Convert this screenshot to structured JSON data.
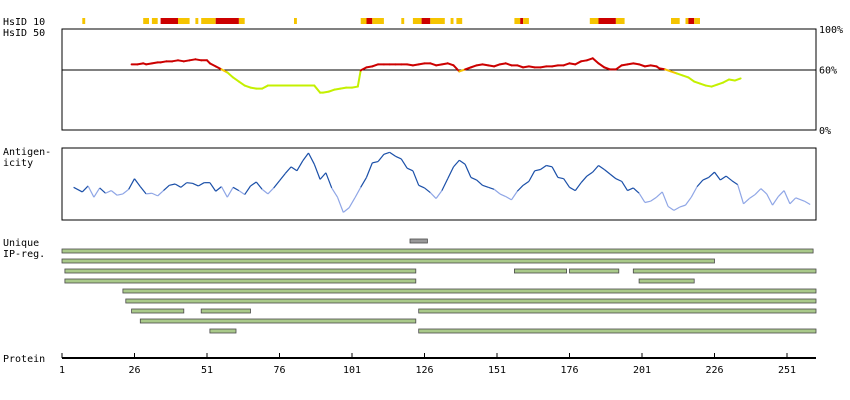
{
  "labels": {
    "hsid10": "HsID 10",
    "hsid50": "HsID 50",
    "antigen_1": "Antigen-",
    "antigen_2": "icity",
    "unique_1": "Unique",
    "unique_2": "IP-reg.",
    "protein": "Protein"
  },
  "colors": {
    "hsid_high": "#cc0000",
    "hsid_mid": "#f5c400",
    "hsid_low": "#c4f000",
    "antigen_dark": "#1a4fa8",
    "antigen_light": "#8fa6e6",
    "ipreg_fill": "#a9c98a",
    "ipreg_unique": "#999999"
  },
  "chart_data": [
    {
      "type": "heatmap",
      "name": "HsID 10",
      "x_range": [
        1,
        261
      ],
      "segments": [
        {
          "x0": 8,
          "x1": 9,
          "level": "mid"
        },
        {
          "x0": 29,
          "x1": 31,
          "level": "mid"
        },
        {
          "x0": 32,
          "x1": 34,
          "level": "mid"
        },
        {
          "x0": 35,
          "x1": 41,
          "level": "high"
        },
        {
          "x0": 41,
          "x1": 45,
          "level": "mid"
        },
        {
          "x0": 47,
          "x1": 48,
          "level": "mid"
        },
        {
          "x0": 49,
          "x1": 54,
          "level": "mid"
        },
        {
          "x0": 54,
          "x1": 62,
          "level": "high"
        },
        {
          "x0": 62,
          "x1": 64,
          "level": "mid"
        },
        {
          "x0": 81,
          "x1": 82,
          "level": "mid"
        },
        {
          "x0": 104,
          "x1": 106,
          "level": "mid"
        },
        {
          "x0": 106,
          "x1": 108,
          "level": "high"
        },
        {
          "x0": 108,
          "x1": 112,
          "level": "mid"
        },
        {
          "x0": 118,
          "x1": 119,
          "level": "mid"
        },
        {
          "x0": 122,
          "x1": 125,
          "level": "mid"
        },
        {
          "x0": 125,
          "x1": 128,
          "level": "high"
        },
        {
          "x0": 128,
          "x1": 133,
          "level": "mid"
        },
        {
          "x0": 135,
          "x1": 136,
          "level": "mid"
        },
        {
          "x0": 137,
          "x1": 139,
          "level": "mid"
        },
        {
          "x0": 157,
          "x1": 159,
          "level": "mid"
        },
        {
          "x0": 159,
          "x1": 160,
          "level": "high"
        },
        {
          "x0": 160,
          "x1": 162,
          "level": "mid"
        },
        {
          "x0": 183,
          "x1": 186,
          "level": "mid"
        },
        {
          "x0": 186,
          "x1": 192,
          "level": "high"
        },
        {
          "x0": 192,
          "x1": 195,
          "level": "mid"
        },
        {
          "x0": 211,
          "x1": 214,
          "level": "mid"
        },
        {
          "x0": 216,
          "x1": 217,
          "level": "mid"
        },
        {
          "x0": 217,
          "x1": 219,
          "level": "high"
        },
        {
          "x0": 219,
          "x1": 221,
          "level": "mid"
        }
      ]
    },
    {
      "type": "line",
      "name": "HsID 50",
      "y_range": [
        0,
        100
      ],
      "y_ticks": [
        "100%",
        "60%",
        "0%"
      ],
      "y_tick_values": [
        100,
        60,
        0
      ],
      "x": [
        25,
        27,
        29,
        30,
        32,
        34,
        35,
        37,
        39,
        41,
        43,
        45,
        47,
        49,
        51,
        52,
        54,
        56,
        58,
        60,
        62,
        64,
        66,
        68,
        70,
        72,
        74,
        76,
        78,
        80,
        82,
        84,
        86,
        88,
        90,
        91,
        93,
        95,
        97,
        99,
        101,
        103,
        104,
        106,
        108,
        110,
        112,
        114,
        116,
        118,
        120,
        122,
        124,
        126,
        128,
        130,
        132,
        134,
        136,
        138,
        140,
        142,
        144,
        146,
        148,
        150,
        152,
        154,
        156,
        158,
        160,
        162,
        164,
        166,
        168,
        170,
        172,
        174,
        176,
        178,
        180,
        182,
        184,
        186,
        188,
        190,
        192,
        194,
        196,
        198,
        200,
        202,
        204,
        206,
        207,
        209,
        211,
        213,
        215,
        217,
        219,
        221,
        223,
        225,
        227,
        229,
        231,
        233,
        235
      ],
      "y": [
        65,
        65,
        66,
        65,
        66,
        67,
        67,
        68,
        68,
        69,
        68,
        69,
        70,
        69,
        69,
        66,
        63,
        60,
        57,
        52,
        48,
        44,
        42,
        41,
        41,
        44,
        44,
        44,
        44,
        44,
        44,
        44,
        44,
        44,
        37,
        37,
        38,
        40,
        41,
        42,
        42,
        43,
        59,
        62,
        63,
        65,
        65,
        65,
        65,
        65,
        65,
        64,
        65,
        66,
        66,
        64,
        65,
        66,
        64,
        58,
        60,
        62,
        64,
        65,
        64,
        63,
        65,
        66,
        64,
        64,
        62,
        63,
        62,
        62,
        63,
        63,
        64,
        64,
        66,
        65,
        68,
        69,
        71,
        66,
        62,
        60,
        60,
        64,
        65,
        66,
        65,
        63,
        64,
        63,
        61,
        60,
        58,
        56,
        54,
        52,
        48,
        46,
        44,
        43,
        45,
        47,
        50,
        49,
        51
      ]
    },
    {
      "type": "line",
      "name": "Antigenicity",
      "x": [
        5,
        8,
        10,
        12,
        14,
        16,
        18,
        20,
        22,
        24,
        26,
        28,
        30,
        32,
        34,
        36,
        38,
        40,
        42,
        44,
        46,
        48,
        50,
        52,
        54,
        56,
        58,
        60,
        62,
        64,
        66,
        68,
        70,
        72,
        74,
        76,
        78,
        80,
        82,
        84,
        86,
        88,
        90,
        92,
        94,
        96,
        98,
        100,
        102,
        104,
        106,
        108,
        110,
        112,
        114,
        116,
        118,
        120,
        122,
        124,
        126,
        128,
        130,
        132,
        134,
        136,
        138,
        140,
        142,
        144,
        146,
        148,
        150,
        152,
        154,
        156,
        158,
        160,
        162,
        164,
        166,
        168,
        170,
        172,
        174,
        176,
        178,
        180,
        182,
        184,
        186,
        188,
        190,
        192,
        194,
        196,
        198,
        200,
        202,
        204,
        206,
        208,
        210,
        212,
        214,
        216,
        218,
        220,
        222,
        224,
        226,
        228,
        230,
        232,
        234,
        236,
        238,
        240,
        242,
        244,
        246,
        248,
        250,
        252,
        254,
        257,
        259
      ],
      "y": [
        45,
        38,
        47,
        30,
        44,
        36,
        40,
        33,
        35,
        42,
        58,
        46,
        35,
        36,
        32,
        40,
        48,
        50,
        45,
        52,
        51,
        47,
        52,
        52,
        39,
        46,
        30,
        45,
        40,
        34,
        47,
        53,
        42,
        35,
        44,
        55,
        66,
        76,
        70,
        85,
        97,
        80,
        57,
        67,
        44,
        30,
        7,
        14,
        29,
        45,
        60,
        82,
        84,
        95,
        98,
        92,
        88,
        74,
        70,
        48,
        44,
        37,
        28,
        40,
        58,
        76,
        86,
        80,
        60,
        56,
        48,
        45,
        42,
        35,
        31,
        26,
        39,
        48,
        54,
        70,
        72,
        78,
        76,
        60,
        58,
        45,
        40,
        52,
        62,
        68,
        78,
        72,
        65,
        58,
        54,
        40,
        44,
        36,
        22,
        24,
        30,
        38,
        16,
        10,
        15,
        18,
        30,
        46,
        56,
        60,
        68,
        56,
        62,
        55,
        49,
        20,
        28,
        34,
        43,
        35,
        18,
        31,
        40,
        20,
        29,
        24,
        19
      ]
    },
    {
      "type": "table",
      "name": "Unique IP-reg.",
      "x_range": [
        1,
        261
      ],
      "bars": [
        {
          "start": 121,
          "end": 127,
          "row": 0,
          "kind": "unique"
        },
        {
          "start": 1,
          "end": 260,
          "row": 1,
          "kind": "region"
        },
        {
          "start": 1,
          "end": 226,
          "row": 2,
          "kind": "region"
        },
        {
          "start": 2,
          "end": 123,
          "row": 3,
          "kind": "region"
        },
        {
          "start": 157,
          "end": 175,
          "row": 3,
          "kind": "region"
        },
        {
          "start": 176,
          "end": 193,
          "row": 3,
          "kind": "region"
        },
        {
          "start": 198,
          "end": 261,
          "row": 3,
          "kind": "region"
        },
        {
          "start": 2,
          "end": 123,
          "row": 4,
          "kind": "region"
        },
        {
          "start": 200,
          "end": 219,
          "row": 4,
          "kind": "region"
        },
        {
          "start": 22,
          "end": 261,
          "row": 5,
          "kind": "region"
        },
        {
          "start": 23,
          "end": 261,
          "row": 6,
          "kind": "region"
        },
        {
          "start": 25,
          "end": 43,
          "row": 7,
          "kind": "region"
        },
        {
          "start": 49,
          "end": 66,
          "row": 7,
          "kind": "region"
        },
        {
          "start": 124,
          "end": 261,
          "row": 7,
          "kind": "region"
        },
        {
          "start": 28,
          "end": 123,
          "row": 8,
          "kind": "region"
        },
        {
          "start": 52,
          "end": 61,
          "row": 9,
          "kind": "region"
        },
        {
          "start": 124,
          "end": 261,
          "row": 9,
          "kind": "region"
        }
      ]
    },
    {
      "type": "table",
      "name": "Protein",
      "x_range": [
        1,
        261
      ],
      "ticks": [
        1,
        26,
        51,
        76,
        101,
        126,
        151,
        176,
        201,
        226,
        251
      ]
    }
  ]
}
